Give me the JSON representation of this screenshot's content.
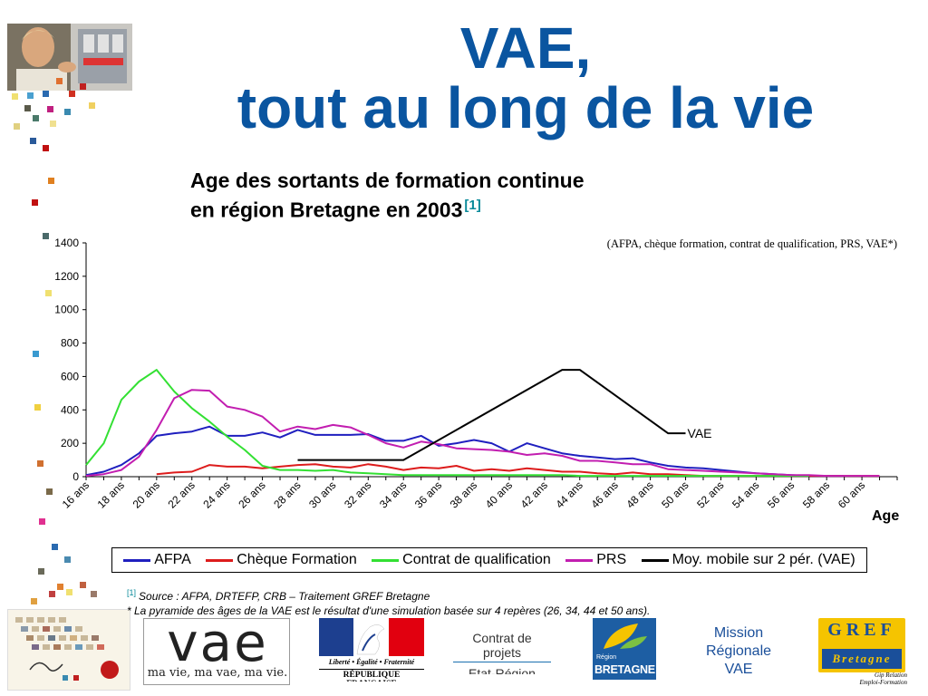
{
  "slide": {
    "title_line1": "VAE,",
    "title_line2": "tout au long de la vie",
    "subtitle_line1": "Age des sortants de formation continue",
    "subtitle_line2": "en région Bretagne en 2003",
    "subtitle_ref": "[1]",
    "chart_note": "(AFPA, chèque formation, contrat de qualification, PRS, VAE*)",
    "source_ref": "[1]",
    "source_line1": "Source : AFPA, DRTEFP, CRB – Traitement GREF Bretagne",
    "source_line2": "* La pyramide des âges de la VAE est le résultat d'une simulation basée sur 4 repères (26, 34, 44 et 50 ans).",
    "logos": {
      "vae_word": "vae",
      "vae_tagline": "ma vie, ma vae, ma vie.",
      "rf_motto": "Liberté • Égalité • Fraternité",
      "rf_name": "RÉPUBLIQUE FRANÇAISE",
      "contrat_line1": "Contrat de projets",
      "contrat_line2": "Etat-Région",
      "region_small": "Région",
      "region_name": "BRETAGNE",
      "mission_line1": "Mission",
      "mission_line2": "Régionale",
      "mission_line3": "VAE",
      "gref_word": "GREF",
      "gref_region": "Bretagne",
      "gref_tag1": "Gip Relation",
      "gref_tag2": "Emploi-Formation"
    }
  },
  "colors": {
    "title": "#0a55a0",
    "AFPA": "#1f1fbf",
    "Cheque": "#dd1c1c",
    "Contrat": "#33e033",
    "PRS": "#c21eb0",
    "VAE": "#000000"
  },
  "chart_data": {
    "type": "line",
    "x_label": "Age",
    "x_start_age": 16,
    "x_end_age": 62,
    "x_tick_labels": [
      "16 ans",
      "18 ans",
      "20 ans",
      "22 ans",
      "24 ans",
      "26 ans",
      "28 ans",
      "30 ans",
      "32 ans",
      "34 ans",
      "36 ans",
      "38 ans",
      "40 ans",
      "42 ans",
      "44 ans",
      "46 ans",
      "48 ans",
      "50 ans",
      "52 ans",
      "54 ans",
      "56 ans",
      "58 ans",
      "60 ans"
    ],
    "ylim": [
      0,
      1400
    ],
    "y_ticks": [
      0,
      200,
      400,
      600,
      800,
      1000,
      1200,
      1400
    ],
    "grid": false,
    "legend_position": "bottom",
    "series": [
      {
        "name": "AFPA",
        "color_key": "AFPA",
        "start_age": 16,
        "values": [
          10,
          30,
          70,
          140,
          245,
          260,
          270,
          300,
          245,
          245,
          265,
          235,
          280,
          250,
          250,
          250,
          255,
          215,
          215,
          245,
          185,
          200,
          220,
          200,
          150,
          200,
          170,
          140,
          125,
          115,
          105,
          110,
          85,
          65,
          55,
          50,
          40,
          30,
          20,
          15,
          10,
          5,
          5,
          5
        ]
      },
      {
        "name": "Chèque Formation",
        "color_key": "Cheque",
        "start_age": 20,
        "values": [
          15,
          25,
          30,
          70,
          60,
          60,
          50,
          60,
          70,
          75,
          60,
          55,
          75,
          60,
          40,
          55,
          50,
          65,
          35,
          45,
          35,
          50,
          40,
          30,
          30,
          20,
          15,
          25,
          15,
          15,
          10,
          5,
          5,
          5,
          5,
          5,
          5,
          5,
          5,
          5,
          5,
          5
        ]
      },
      {
        "name": "Contrat de qualification",
        "color_key": "Contrat",
        "start_age": 16,
        "values": [
          70,
          200,
          460,
          570,
          640,
          510,
          410,
          330,
          240,
          160,
          65,
          40,
          40,
          35,
          40,
          25,
          20,
          15,
          10,
          10,
          10,
          10,
          10,
          10,
          10,
          10,
          10,
          10,
          5,
          5,
          5,
          5,
          5,
          5,
          5,
          5,
          5,
          5,
          5,
          5,
          5,
          5
        ]
      },
      {
        "name": "PRS",
        "color_key": "PRS",
        "start_age": 16,
        "values": [
          5,
          15,
          40,
          120,
          280,
          470,
          520,
          515,
          420,
          400,
          360,
          270,
          300,
          285,
          310,
          295,
          250,
          200,
          175,
          210,
          195,
          170,
          165,
          160,
          150,
          130,
          140,
          125,
          95,
          95,
          85,
          75,
          75,
          45,
          40,
          35,
          30,
          25,
          20,
          15,
          10,
          10,
          5,
          5,
          5,
          5
        ]
      },
      {
        "name": "Moy. mobile sur 2 pér. (VAE)",
        "color_key": "VAE",
        "label": "VAE",
        "points": [
          [
            28,
            100
          ],
          [
            34,
            100
          ],
          [
            43,
            640
          ],
          [
            44,
            640
          ],
          [
            49,
            260
          ],
          [
            50,
            260
          ]
        ]
      }
    ]
  }
}
